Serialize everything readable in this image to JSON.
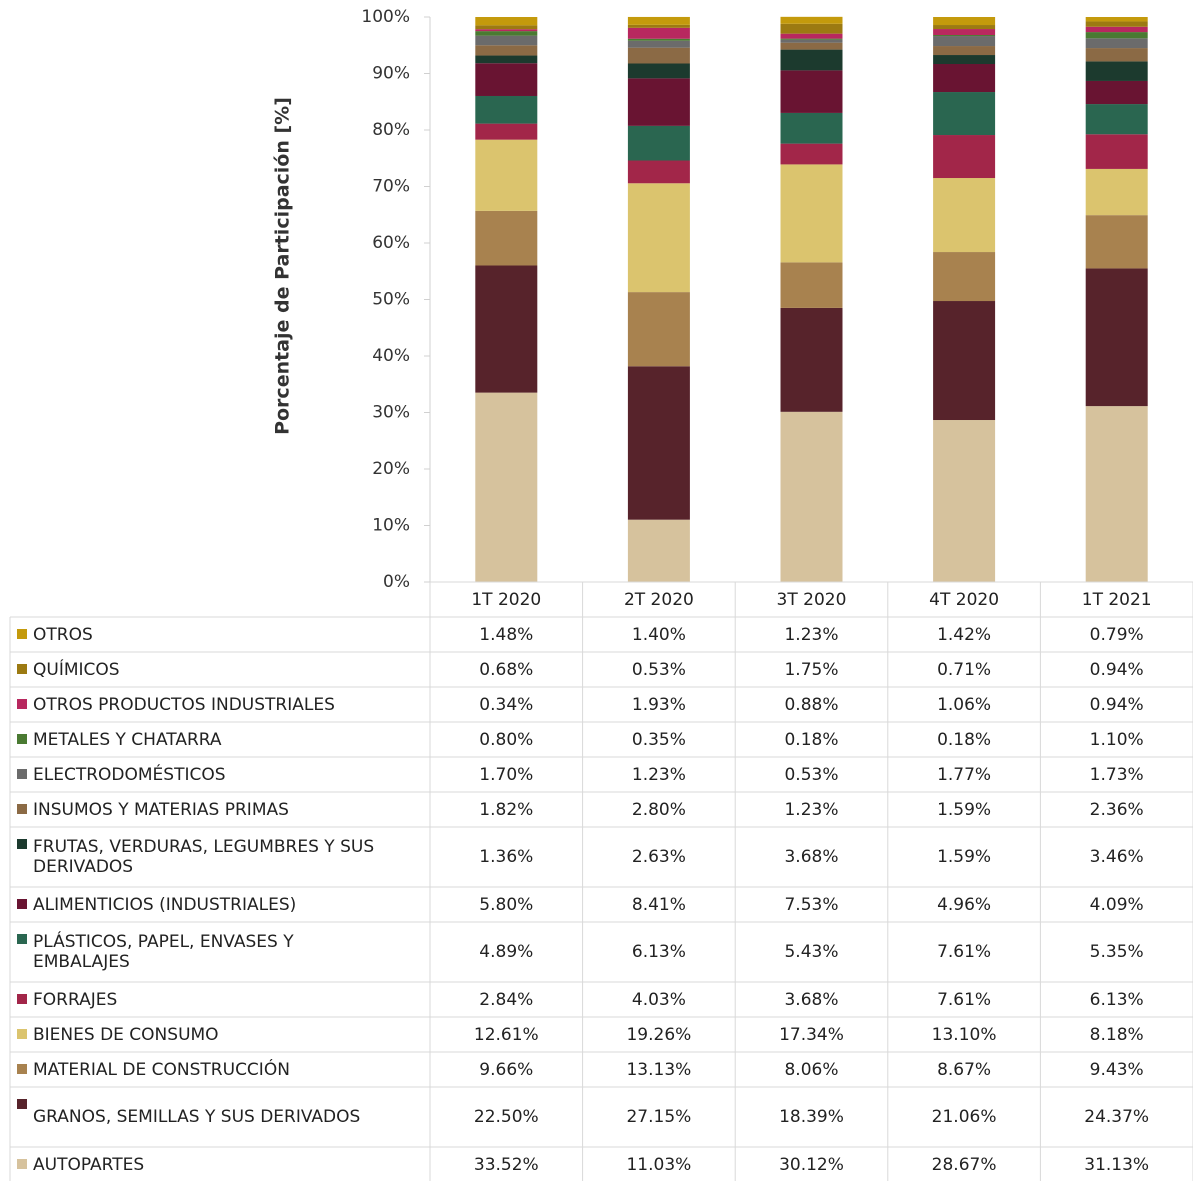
{
  "chart_data": {
    "type": "stacked_bar",
    "y_label": "Porcentaje de Participación [%]",
    "categories": [
      "1T 2020",
      "2T 2020",
      "3T 2020",
      "4T 2020",
      "1T 2021"
    ],
    "ylim": [
      0,
      100
    ],
    "yticks": [
      {
        "value": 0,
        "label": "0%"
      },
      {
        "value": 10,
        "label": "10%"
      },
      {
        "value": 20,
        "label": "20%"
      },
      {
        "value": 30,
        "label": "30%"
      },
      {
        "value": 40,
        "label": "40%"
      },
      {
        "value": 50,
        "label": "50%"
      },
      {
        "value": 60,
        "label": "60%"
      },
      {
        "value": 70,
        "label": "70%"
      },
      {
        "value": 80,
        "label": "80%"
      },
      {
        "value": 90,
        "label": "90%"
      },
      {
        "value": 100,
        "label": "100%"
      }
    ],
    "series": [
      {
        "name": "OTROS",
        "color": "#c49a0c",
        "values": [
          1.48,
          1.4,
          1.23,
          1.42,
          0.79
        ],
        "value_labels": [
          "1.48%",
          "1.40%",
          "1.23%",
          "1.42%",
          "0.79%"
        ]
      },
      {
        "name": "QUÍMICOS",
        "color": "#9c7a12",
        "values": [
          0.68,
          0.53,
          1.75,
          0.71,
          0.94
        ],
        "value_labels": [
          "0.68%",
          "0.53%",
          "1.75%",
          "0.71%",
          "0.94%"
        ]
      },
      {
        "name": "OTROS PRODUCTOS INDUSTRIALES",
        "color": "#b8285f",
        "values": [
          0.34,
          1.93,
          0.88,
          1.06,
          0.94
        ],
        "value_labels": [
          "0.34%",
          "1.93%",
          "0.88%",
          "1.06%",
          "0.94%"
        ]
      },
      {
        "name": "METALES Y CHATARRA",
        "color": "#4a7a32",
        "values": [
          0.8,
          0.35,
          0.18,
          0.18,
          1.1
        ],
        "value_labels": [
          "0.80%",
          "0.35%",
          "0.18%",
          "0.18%",
          "1.10%"
        ]
      },
      {
        "name": "ELECTRODOMÉSTICOS",
        "color": "#6b6b6b",
        "values": [
          1.7,
          1.23,
          0.53,
          1.77,
          1.73
        ],
        "value_labels": [
          "1.70%",
          "1.23%",
          "0.53%",
          "1.77%",
          "1.73%"
        ]
      },
      {
        "name": "INSUMOS Y MATERIAS PRIMAS",
        "color": "#8b6a45",
        "values": [
          1.82,
          2.8,
          1.23,
          1.59,
          2.36
        ],
        "value_labels": [
          "1.82%",
          "2.80%",
          "1.23%",
          "1.59%",
          "2.36%"
        ]
      },
      {
        "name": "FRUTAS, VERDURAS, LEGUMBRES Y SUS DERIVADOS",
        "color": "#1c3a2e",
        "values": [
          1.36,
          2.63,
          3.68,
          1.59,
          3.46
        ],
        "value_labels": [
          "1.36%",
          "2.63%",
          "3.68%",
          "1.59%",
          "3.46%"
        ]
      },
      {
        "name": "ALIMENTICIOS (INDUSTRIALES)",
        "color": "#691432",
        "values": [
          5.8,
          8.41,
          7.53,
          4.96,
          4.09
        ],
        "value_labels": [
          "5.80%",
          "8.41%",
          "7.53%",
          "4.96%",
          "4.09%"
        ]
      },
      {
        "name": "PLÁSTICOS, PAPEL, ENVASES Y EMBALAJES",
        "color": "#2a6650",
        "values": [
          4.89,
          6.13,
          5.43,
          7.61,
          5.35
        ],
        "value_labels": [
          "4.89%",
          "6.13%",
          "5.43%",
          "7.61%",
          "5.35%"
        ]
      },
      {
        "name": "FORRAJES",
        "color": "#a22649",
        "values": [
          2.84,
          4.03,
          3.68,
          7.61,
          6.13
        ],
        "value_labels": [
          "2.84%",
          "4.03%",
          "3.68%",
          "7.61%",
          "6.13%"
        ]
      },
      {
        "name": "BIENES DE CONSUMO",
        "color": "#dbc46e",
        "values": [
          12.61,
          19.26,
          17.34,
          13.1,
          8.18
        ],
        "value_labels": [
          "12.61%",
          "19.26%",
          "17.34%",
          "13.10%",
          "8.18%"
        ]
      },
      {
        "name": "MATERIAL DE CONSTRUCCIÓN",
        "color": "#a8824f",
        "values": [
          9.66,
          13.13,
          8.06,
          8.67,
          9.43
        ],
        "value_labels": [
          "9.66%",
          "13.13%",
          "8.06%",
          "8.67%",
          "9.43%"
        ]
      },
      {
        "name": "GRANOS, SEMILLAS Y SUS DERIVADOS",
        "color": "#57232b",
        "values": [
          22.5,
          27.15,
          18.39,
          21.06,
          24.37
        ],
        "value_labels": [
          "22.50%",
          "27.15%",
          "18.39%",
          "21.06%",
          "24.37%"
        ]
      },
      {
        "name": "AUTOPARTES",
        "color": "#d6c29d",
        "values": [
          33.52,
          11.03,
          30.12,
          28.67,
          31.13
        ],
        "value_labels": [
          "33.52%",
          "11.03%",
          "30.12%",
          "28.67%",
          "31.13%"
        ]
      }
    ]
  }
}
